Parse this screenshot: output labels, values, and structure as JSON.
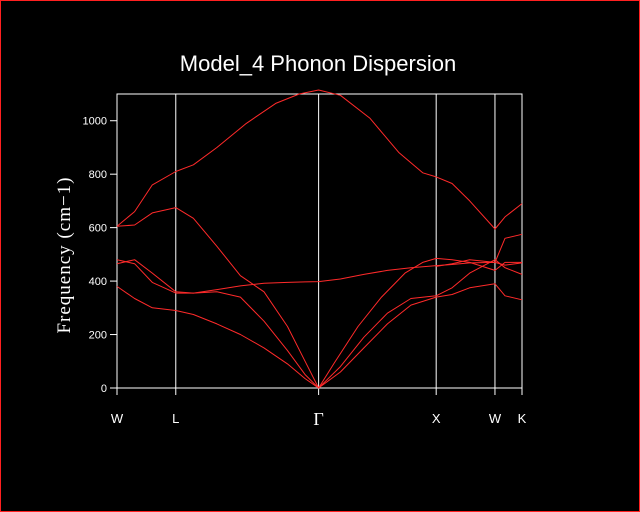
{
  "chart_data": {
    "type": "line",
    "title": "Model_4 Phonon Dispersion",
    "ylabel": "Frequency (cm−1)",
    "xlabel": "",
    "ylim": [
      0,
      1100
    ],
    "yticks": [
      0,
      200,
      400,
      600,
      800,
      1000
    ],
    "x_ticks": [
      {
        "label": "W",
        "x": 0
      },
      {
        "label": "L",
        "x": 1
      },
      {
        "label": "Γ",
        "x": 3.43
      },
      {
        "label": "X",
        "x": 5.43
      },
      {
        "label": "W",
        "x": 6.43
      },
      {
        "label": "K",
        "x": 6.89
      }
    ],
    "xlim": [
      0,
      6.89
    ],
    "grid": false,
    "line_color": "#ff2a2a",
    "series": [
      {
        "x": [
          0,
          0.3,
          0.6,
          1.0,
          1.3,
          1.7,
          2.2,
          2.7,
          3.1,
          3.43,
          3.8,
          4.3,
          4.8,
          5.2,
          5.43,
          5.7,
          6.0,
          6.43,
          6.6,
          6.89
        ],
        "y": [
          605,
          660,
          760,
          810,
          835,
          900,
          990,
          1065,
          1100,
          1115,
          1095,
          1010,
          880,
          805,
          790,
          765,
          700,
          595,
          640,
          690
        ]
      },
      {
        "x": [
          0,
          0.3,
          0.6,
          1.0,
          1.3,
          1.7,
          2.1,
          2.5,
          2.9,
          3.2,
          3.43,
          3.7,
          4.1,
          4.5,
          4.9,
          5.2,
          5.43,
          5.7,
          6.0,
          6.43,
          6.6,
          6.89
        ],
        "y": [
          605,
          610,
          655,
          675,
          635,
          530,
          420,
          360,
          230,
          100,
          0,
          95,
          230,
          340,
          430,
          470,
          485,
          480,
          470,
          440,
          470,
          470
        ]
      },
      {
        "x": [
          0,
          0.3,
          0.6,
          1.0,
          1.3,
          1.7,
          2.1,
          2.5,
          2.9,
          3.2,
          3.43,
          3.8,
          4.2,
          4.6,
          5.0,
          5.43,
          5.7,
          6.0,
          6.43,
          6.6,
          6.89
        ],
        "y": [
          480,
          465,
          395,
          355,
          355,
          368,
          382,
          392,
          395,
          397,
          398,
          408,
          425,
          440,
          450,
          458,
          462,
          468,
          470,
          460,
          468
        ]
      },
      {
        "x": [
          0,
          0.3,
          0.6,
          1.0,
          1.3,
          1.7,
          2.1,
          2.5,
          2.9,
          3.2,
          3.43,
          3.8,
          4.2,
          4.6,
          5.0,
          5.43,
          5.7,
          6.0,
          6.43,
          6.6,
          6.89
        ],
        "y": [
          465,
          480,
          430,
          360,
          355,
          360,
          340,
          250,
          140,
          50,
          0,
          80,
          190,
          280,
          335,
          345,
          375,
          430,
          480,
          450,
          425
        ]
      },
      {
        "x": [
          0,
          0.3,
          0.6,
          1.0,
          1.3,
          1.7,
          2.1,
          2.5,
          2.9,
          3.2,
          3.43,
          3.8,
          4.2,
          4.6,
          5.0,
          5.43,
          5.7,
          6.0,
          6.43,
          6.6,
          6.89
        ],
        "y": [
          380,
          335,
          300,
          290,
          275,
          240,
          200,
          150,
          90,
          35,
          0,
          60,
          150,
          240,
          310,
          340,
          350,
          375,
          390,
          345,
          330
        ]
      },
      {
        "x": [
          5.43,
          5.7,
          6.0,
          6.43,
          6.6,
          6.89
        ],
        "y": [
          455,
          465,
          480,
          470,
          560,
          575
        ]
      }
    ]
  }
}
